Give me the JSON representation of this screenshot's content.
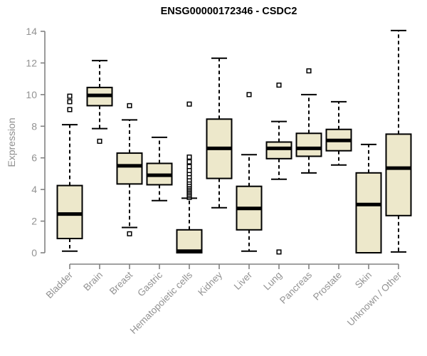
{
  "page": {
    "background": "#ffffff"
  },
  "chart_data": {
    "type": "boxplot",
    "title": "ENSG00000172346 - CSDC2",
    "ylabel": "Expression",
    "xlabel": "",
    "ylim": [
      0,
      14
    ],
    "yticks": [
      0,
      2,
      4,
      6,
      8,
      10,
      12,
      14
    ],
    "grid": false,
    "legend": false,
    "categories": [
      "Bladder",
      "Brain",
      "Breast",
      "Gastric",
      "Hematopoietic cells",
      "Kidney",
      "Liver",
      "Lung",
      "Pancreas",
      "Prostate",
      "Skin",
      "Unknown / Other"
    ],
    "boxes": [
      {
        "category": "Bladder",
        "whislo": 0.1,
        "q1": 0.9,
        "med": 2.45,
        "q3": 4.25,
        "whishi": 8.1,
        "fliers": [
          9.05,
          9.55,
          9.9
        ]
      },
      {
        "category": "Brain",
        "whislo": 7.85,
        "q1": 9.3,
        "med": 9.95,
        "q3": 10.45,
        "whishi": 12.15,
        "fliers": [
          7.05
        ]
      },
      {
        "category": "Breast",
        "whislo": 1.6,
        "q1": 4.35,
        "med": 5.5,
        "q3": 6.3,
        "whishi": 8.4,
        "fliers": [
          1.2,
          9.3
        ]
      },
      {
        "category": "Gastric",
        "whislo": 3.3,
        "q1": 4.3,
        "med": 4.9,
        "q3": 5.65,
        "whishi": 7.3,
        "fliers": []
      },
      {
        "category": "Hematopoietic cells",
        "whislo": 0.0,
        "q1": 0.0,
        "med": 0.1,
        "q3": 1.45,
        "whishi": 3.45,
        "fliers": [
          3.5,
          3.6,
          3.7,
          3.8,
          3.9,
          4.0,
          4.1,
          4.2,
          4.3,
          4.45,
          4.6,
          4.8,
          5.0,
          5.2,
          5.45,
          5.75,
          6.05,
          9.4
        ]
      },
      {
        "category": "Kidney",
        "whislo": 2.85,
        "q1": 4.7,
        "med": 6.6,
        "q3": 8.45,
        "whishi": 12.3,
        "fliers": []
      },
      {
        "category": "Liver",
        "whislo": 0.1,
        "q1": 1.45,
        "med": 2.8,
        "q3": 4.2,
        "whishi": 6.2,
        "fliers": [
          10.0
        ]
      },
      {
        "category": "Lung",
        "whislo": 4.65,
        "q1": 5.95,
        "med": 6.6,
        "q3": 7.0,
        "whishi": 8.3,
        "fliers": [
          0.05,
          10.6
        ]
      },
      {
        "category": "Pancreas",
        "whislo": 5.05,
        "q1": 6.1,
        "med": 6.6,
        "q3": 7.55,
        "whishi": 10.0,
        "fliers": [
          11.5
        ]
      },
      {
        "category": "Prostate",
        "whislo": 5.55,
        "q1": 6.45,
        "med": 7.1,
        "q3": 7.8,
        "whishi": 9.55,
        "fliers": []
      },
      {
        "category": "Skin",
        "whislo": 0.0,
        "q1": 0.0,
        "med": 3.05,
        "q3": 5.05,
        "whishi": 6.85,
        "fliers": []
      },
      {
        "category": "Unknown / Other",
        "whislo": 0.05,
        "q1": 2.35,
        "med": 5.35,
        "q3": 7.5,
        "whishi": 14.05,
        "fliers": []
      }
    ],
    "colors": {
      "box_fill": "#EDE8CB",
      "box_border": "#000000",
      "median": "#000000",
      "whisker": "#000000",
      "axis": "#828282",
      "tick_label": "#929292",
      "title": "#000000",
      "background": "#ffffff"
    }
  }
}
